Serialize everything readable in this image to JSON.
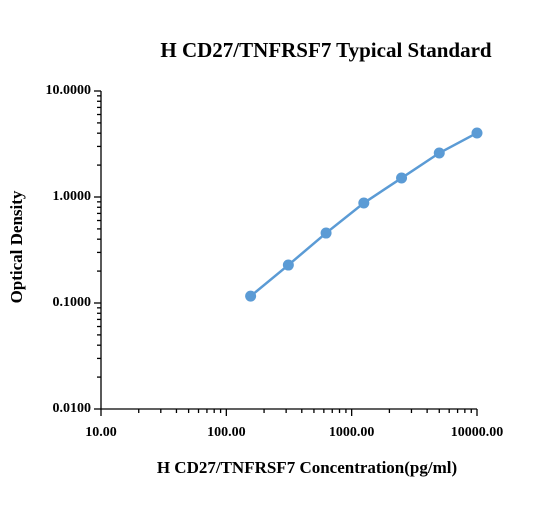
{
  "chart_data": {
    "type": "line",
    "title": "H CD27/TNFRSF7 Typical Standard",
    "x_label": "H CD27/TNFRSF7 Concentration(pg/ml)",
    "y_label": "Optical Density",
    "x": [
      156.25,
      312.5,
      625,
      1250,
      2500,
      5000,
      10000
    ],
    "series": [
      {
        "name": "H CD27/TNFRSF7",
        "color": "#5b9bd5",
        "values": [
          0.116,
          0.228,
          0.457,
          0.877,
          1.51,
          2.6,
          4.02
        ]
      }
    ],
    "xlim": [
      10,
      10000
    ],
    "ylim": [
      0.01,
      10
    ],
    "xticks": [
      {
        "value": 10,
        "label": "10.00"
      },
      {
        "value": 100,
        "label": "100.00"
      },
      {
        "value": 1000,
        "label": "1000.00"
      },
      {
        "value": 10000,
        "label": "10000.00"
      }
    ],
    "yticks": [
      {
        "value": 0.01,
        "label": "0.0100"
      },
      {
        "value": 0.1,
        "label": "0.1000"
      },
      {
        "value": 1,
        "label": "1.0000"
      },
      {
        "value": 10,
        "label": "10.0000"
      }
    ],
    "x_log": true,
    "y_log": true,
    "grid": false,
    "legend": false
  }
}
